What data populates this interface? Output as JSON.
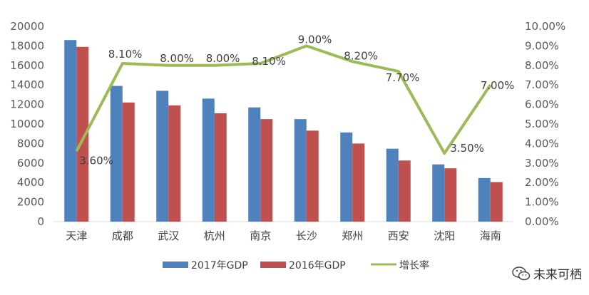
{
  "chart_data": {
    "type": "bar",
    "categories": [
      "天津",
      "成都",
      "武汉",
      "杭州",
      "南京",
      "长沙",
      "郑州",
      "西安",
      "沈阳",
      "海南"
    ],
    "series": [
      {
        "name": "2017年GDP",
        "type": "bar",
        "axis": "left",
        "color": "#4f81bd",
        "values": [
          18600,
          13900,
          13400,
          12600,
          11700,
          10500,
          9130,
          7470,
          5860,
          4460
        ]
      },
      {
        "name": "2016年GDP",
        "type": "bar",
        "axis": "left",
        "color": "#c0504d",
        "values": [
          17900,
          12200,
          11900,
          11100,
          10500,
          9320,
          8000,
          6260,
          5460,
          4050
        ]
      },
      {
        "name": "增长率",
        "type": "line",
        "axis": "right",
        "color": "#9bbb59",
        "values": [
          3.6,
          8.1,
          8.0,
          8.0,
          8.1,
          9.0,
          8.2,
          7.7,
          3.5,
          7.0
        ],
        "labels": [
          "3.60%",
          "8.10%",
          "8.00%",
          "8.00%",
          "8.10%",
          "9.00%",
          "8.20%",
          "7.70%",
          "3.50%",
          "7.00%"
        ]
      }
    ],
    "ylim": [
      0,
      20000
    ],
    "yticks": [
      "0",
      "2000",
      "4000",
      "6000",
      "8000",
      "10000",
      "12000",
      "14000",
      "16000",
      "18000",
      "20000"
    ],
    "y2lim": [
      0,
      10
    ],
    "y2ticks": [
      "0.00%",
      "1.00%",
      "2.00%",
      "3.00%",
      "4.00%",
      "5.00%",
      "6.00%",
      "7.00%",
      "8.00%",
      "9.00%",
      "10.00%"
    ],
    "grid": false,
    "legend_position": "bottom"
  },
  "watermark": {
    "text": "未来可栖",
    "icon": "wechat-icon"
  }
}
